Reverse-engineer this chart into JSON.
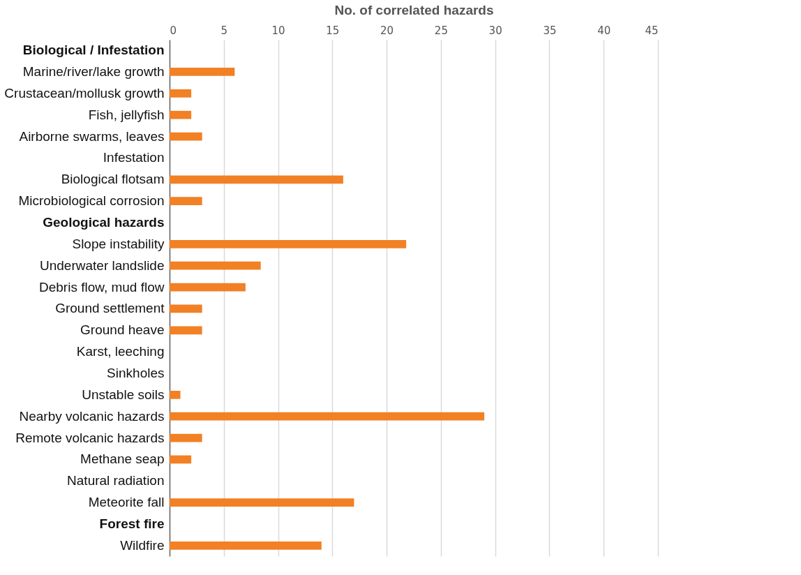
{
  "chart_data": {
    "type": "bar",
    "orientation": "horizontal",
    "xlabel": "No. of correlated hazards",
    "categories": [
      "Biological / Infestation",
      "Marine/river/lake growth",
      "Crustacean/mollusk growth",
      "Fish, jellyfish",
      "Airborne swarms, leaves",
      "Infestation",
      "Biological flotsam",
      "Microbiological corrosion",
      "Geological hazards",
      "Slope instability",
      "Underwater landslide",
      "Debris flow, mud flow",
      "Ground settlement",
      "Ground heave",
      "Karst, leeching",
      "Sinkholes",
      "Unstable soils",
      "Nearby volcanic hazards",
      "Remote volcanic hazards",
      "Methane seap",
      "Natural radiation",
      "Meteorite fall",
      "Forest fire",
      "Wildfire"
    ],
    "values": [
      null,
      6,
      2,
      2,
      3,
      0,
      16,
      3,
      null,
      21.8,
      8.4,
      7,
      3,
      3,
      0,
      0,
      1,
      29,
      3,
      2,
      0,
      17,
      null,
      14
    ],
    "color": "#f28024",
    "xlim": [
      0,
      45
    ],
    "xticks": [
      0,
      5,
      10,
      15,
      20,
      25,
      30,
      35,
      40,
      45
    ],
    "grid": "x"
  }
}
